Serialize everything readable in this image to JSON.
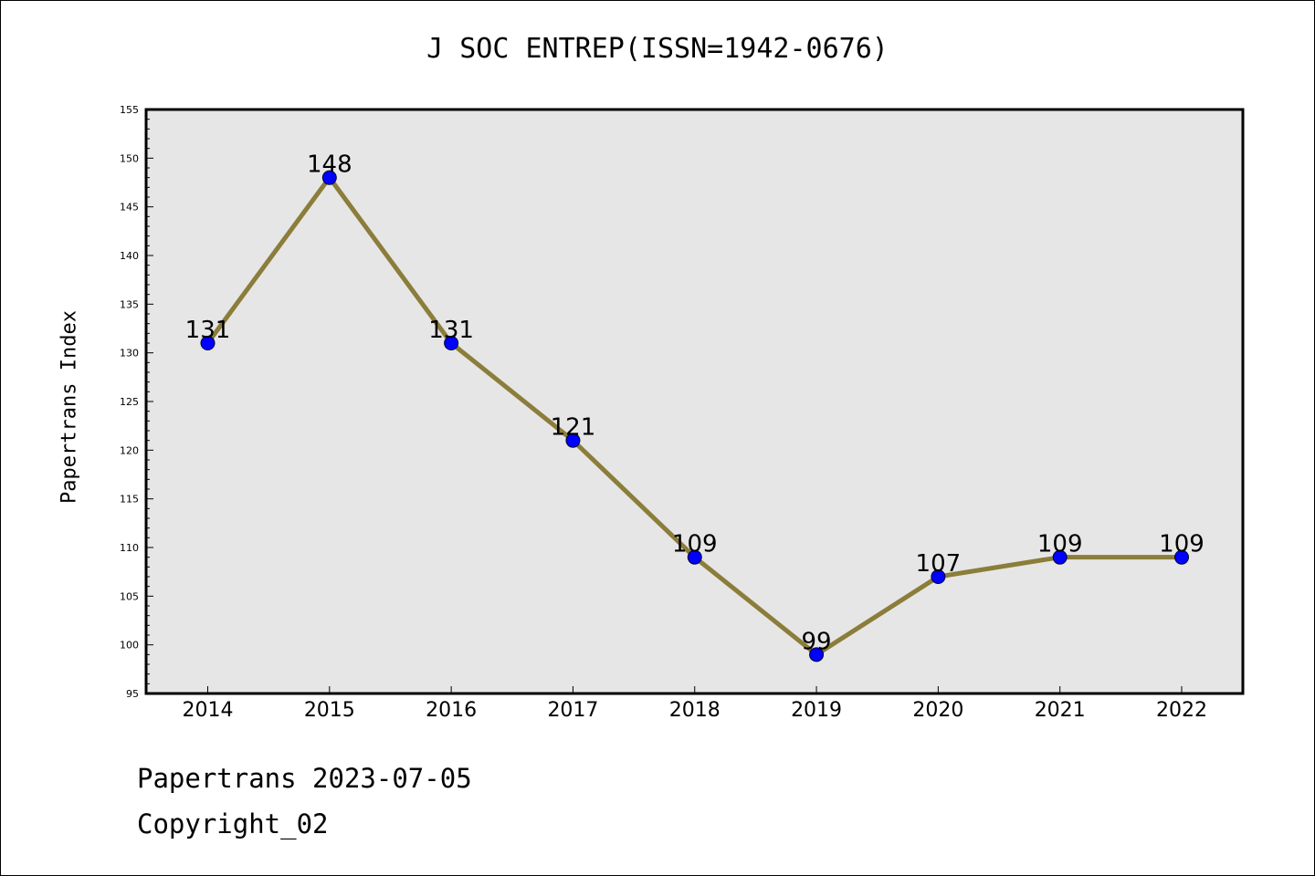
{
  "chart_data": {
    "type": "line",
    "title": "J SOC ENTREP(ISSN=1942-0676)",
    "ylabel": "Papertrans Index",
    "xlabel": "",
    "categories": [
      "2014",
      "2015",
      "2016",
      "2017",
      "2018",
      "2019",
      "2020",
      "2021",
      "2022"
    ],
    "series": [
      {
        "values": [
          131,
          148,
          131,
          121,
          109,
          99,
          107,
          109,
          109
        ]
      }
    ],
    "ylim": [
      95,
      155
    ],
    "yticks": [
      95,
      100,
      105,
      110,
      115,
      120,
      125,
      130,
      135,
      140,
      145,
      150,
      155
    ],
    "data_labels": true,
    "grid": false,
    "colors": {
      "line": "#8b7d3a",
      "marker": "#0000ff",
      "plot_bg": "#e6e6e6"
    }
  },
  "footer": {
    "line1": "Papertrans 2023-07-05",
    "line2": "Copyright_02"
  }
}
